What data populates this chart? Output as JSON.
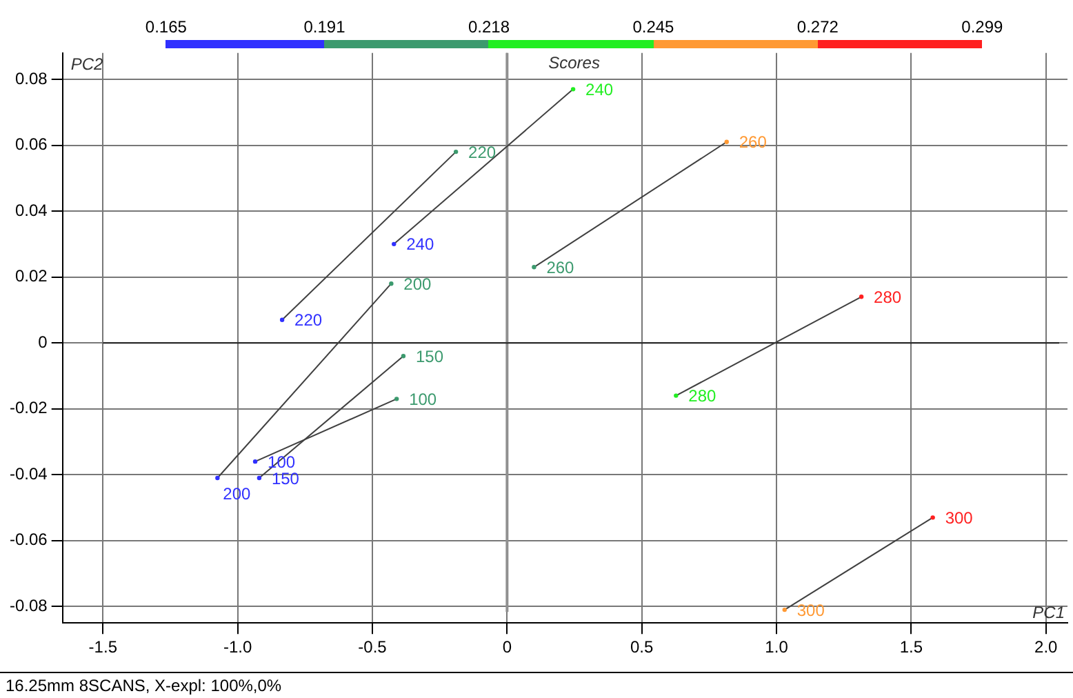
{
  "chart_data": {
    "type": "scatter",
    "xlabel": "PC1",
    "ylabel": "PC2",
    "x2label": "Scores",
    "xlim": [
      -1.65,
      2.08
    ],
    "ylim": [
      -0.085,
      0.088
    ],
    "xticks": [
      -1.5,
      {
        "value": -1,
        "label": "-1.0"
      },
      -0.5,
      0,
      0.5,
      {
        "value": 1,
        "label": "1.0"
      },
      1.5,
      {
        "value": 2,
        "label": "2.0"
      }
    ],
    "yticks": [
      -0.08,
      -0.06,
      -0.04,
      -0.02,
      0,
      0.02,
      0.04,
      0.06,
      0.08
    ],
    "x2lim": [
      0.148,
      0.313
    ],
    "x2ticks": [
      0.165,
      0.191,
      0.218,
      0.245,
      0.272,
      0.299
    ],
    "grid": true,
    "legend": false,
    "marker": "circle",
    "ref_lines": [
      {
        "axis": "x",
        "value": 0,
        "color": "#909090"
      },
      {
        "axis": "y",
        "value": 0,
        "color": "#202020"
      }
    ],
    "annotations": [
      "16.25mm 8SCANS, X-expl: 100%,0%"
    ],
    "series": [
      {
        "type": "line",
        "color": "#404040",
        "marker": "none",
        "x": [
          -0.935,
          -0.41
        ],
        "values": [
          -0.036,
          -0.017
        ]
      },
      {
        "type": "line",
        "color": "#404040",
        "marker": "none",
        "x": [
          -0.92,
          -0.385
        ],
        "values": [
          -0.041,
          -0.004
        ]
      },
      {
        "type": "line",
        "color": "#404040",
        "marker": "none",
        "x": [
          -1.075,
          -0.43
        ],
        "values": [
          -0.041,
          0.018
        ]
      },
      {
        "type": "line",
        "color": "#404040",
        "marker": "none",
        "x": [
          -0.835,
          -0.19
        ],
        "values": [
          0.007,
          0.058
        ]
      },
      {
        "type": "line",
        "color": "#404040",
        "marker": "none",
        "x": [
          -0.42,
          0.245
        ],
        "values": [
          0.03,
          0.077
        ]
      },
      {
        "type": "line",
        "color": "#404040",
        "marker": "none",
        "x": [
          0.1,
          0.815
        ],
        "values": [
          0.023,
          0.061
        ]
      },
      {
        "type": "line",
        "color": "#404040",
        "marker": "none",
        "x": [
          0.627,
          1.315
        ],
        "values": [
          -0.016,
          0.014
        ]
      },
      {
        "type": "line",
        "color": "#404040",
        "marker": "none",
        "x": [
          1.03,
          1.58
        ],
        "values": [
          -0.081,
          -0.053
        ]
      },
      {
        "name": "100",
        "color": "#3030ff",
        "x": [
          -0.935
        ],
        "values": [
          -0.036
        ]
      },
      {
        "name": "100",
        "color": "#3c9a6e",
        "x": [
          -0.41
        ],
        "values": [
          -0.017
        ]
      },
      {
        "name": "150",
        "color": "#3030ff",
        "x": [
          -0.92
        ],
        "values": [
          -0.041
        ]
      },
      {
        "name": "150",
        "color": "#3c9a6e",
        "x": [
          -0.385
        ],
        "values": [
          -0.004
        ]
      },
      {
        "name": "200",
        "color": "#3030ff",
        "x": [
          -1.075
        ],
        "values": [
          -0.041
        ]
      },
      {
        "name": "200",
        "color": "#3c9a6e",
        "x": [
          -0.43
        ],
        "values": [
          0.018
        ]
      },
      {
        "name": "220",
        "color": "#3030ff",
        "x": [
          -0.835
        ],
        "values": [
          0.007
        ]
      },
      {
        "name": "220",
        "color": "#3c9a6e",
        "x": [
          -0.19
        ],
        "values": [
          0.058
        ]
      },
      {
        "name": "240",
        "color": "#3030ff",
        "x": [
          -0.42
        ],
        "values": [
          0.03
        ]
      },
      {
        "name": "240",
        "color": "#22ee22",
        "x": [
          0.245
        ],
        "values": [
          0.077
        ]
      },
      {
        "name": "260",
        "color": "#3c9a6e",
        "x": [
          0.1
        ],
        "values": [
          0.023
        ]
      },
      {
        "name": "260",
        "color": "#ff9933",
        "x": [
          0.815
        ],
        "values": [
          0.061
        ]
      },
      {
        "name": "280",
        "color": "#22ee22",
        "x": [
          0.627
        ],
        "values": [
          -0.016
        ]
      },
      {
        "name": "280",
        "color": "#ff2020",
        "x": [
          1.315
        ],
        "values": [
          0.014
        ]
      },
      {
        "name": "300",
        "color": "#ff9933",
        "x": [
          1.03
        ],
        "values": [
          -0.081
        ]
      },
      {
        "name": "300",
        "color": "#ff2020",
        "x": [
          1.58
        ],
        "values": [
          -0.053
        ]
      }
    ]
  }
}
